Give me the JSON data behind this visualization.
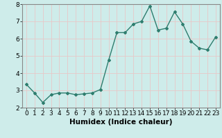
{
  "x": [
    0,
    1,
    2,
    3,
    4,
    5,
    6,
    7,
    8,
    9,
    10,
    11,
    12,
    13,
    14,
    15,
    16,
    17,
    18,
    19,
    20,
    21,
    22,
    23
  ],
  "y": [
    3.35,
    2.85,
    2.3,
    2.75,
    2.85,
    2.85,
    2.75,
    2.8,
    2.85,
    3.05,
    4.75,
    6.35,
    6.35,
    6.85,
    7.0,
    7.9,
    6.5,
    6.6,
    7.55,
    6.85,
    5.85,
    5.45,
    5.35,
    6.1
  ],
  "line_color": "#2e7d6e",
  "marker": "D",
  "marker_size": 2,
  "linewidth": 1.0,
  "xlim": [
    -0.5,
    23.5
  ],
  "ylim": [
    2.0,
    8.0
  ],
  "yticks": [
    2,
    3,
    4,
    5,
    6,
    7,
    8
  ],
  "xticks": [
    0,
    1,
    2,
    3,
    4,
    5,
    6,
    7,
    8,
    9,
    10,
    11,
    12,
    13,
    14,
    15,
    16,
    17,
    18,
    19,
    20,
    21,
    22,
    23
  ],
  "xlabel": "Humidex (Indice chaleur)",
  "background_color": "#ceecea",
  "grid_color": "#e8c8c8",
  "tick_label_size": 6.5,
  "xlabel_size": 7.5
}
